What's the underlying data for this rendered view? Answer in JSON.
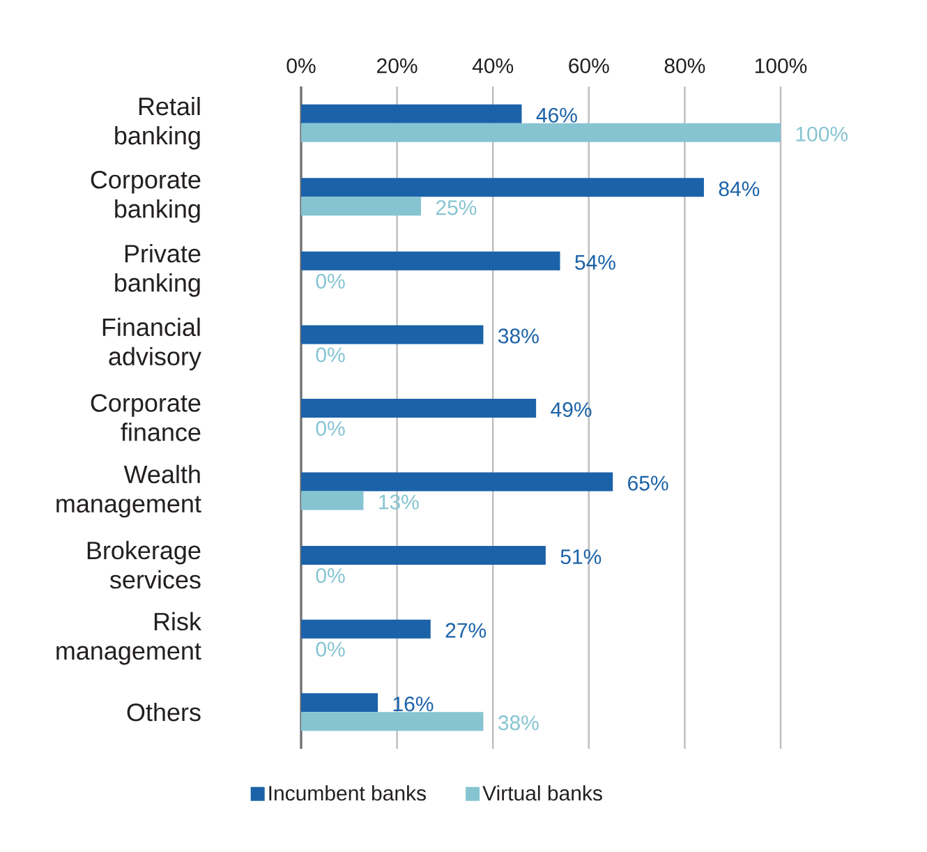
{
  "chart_data": {
    "type": "bar",
    "orientation": "horizontal",
    "categories": [
      "Retail banking",
      "Corporate banking",
      "Private banking",
      "Financial advisory",
      "Corporate finance",
      "Wealth management",
      "Brokerage services",
      "Risk management",
      "Others"
    ],
    "series": [
      {
        "name": "Incumbent banks",
        "color": "#1b62a8",
        "values": [
          46,
          84,
          54,
          38,
          49,
          65,
          51,
          27,
          16
        ],
        "value_labels": [
          "46%",
          "84%",
          "54%",
          "38%",
          "49%",
          "65%",
          "51%",
          "27%",
          "16%"
        ]
      },
      {
        "name": "Virtual banks",
        "color": "#86c4d2",
        "values": [
          100,
          25,
          0,
          0,
          0,
          13,
          0,
          0,
          38
        ],
        "value_labels": [
          "100%",
          "25%",
          "0%",
          "0%",
          "0%",
          "13%",
          "0%",
          "0%",
          "38%"
        ]
      }
    ],
    "xlim": [
      0,
      100
    ],
    "xticks": [
      {
        "value": 0,
        "label": "0%"
      },
      {
        "value": 20,
        "label": "20%"
      },
      {
        "value": 40,
        "label": "40%"
      },
      {
        "value": 60,
        "label": "60%"
      },
      {
        "value": 80,
        "label": "80%"
      },
      {
        "value": 100,
        "label": "100%"
      }
    ],
    "grid": "x",
    "legend": "bottom"
  }
}
